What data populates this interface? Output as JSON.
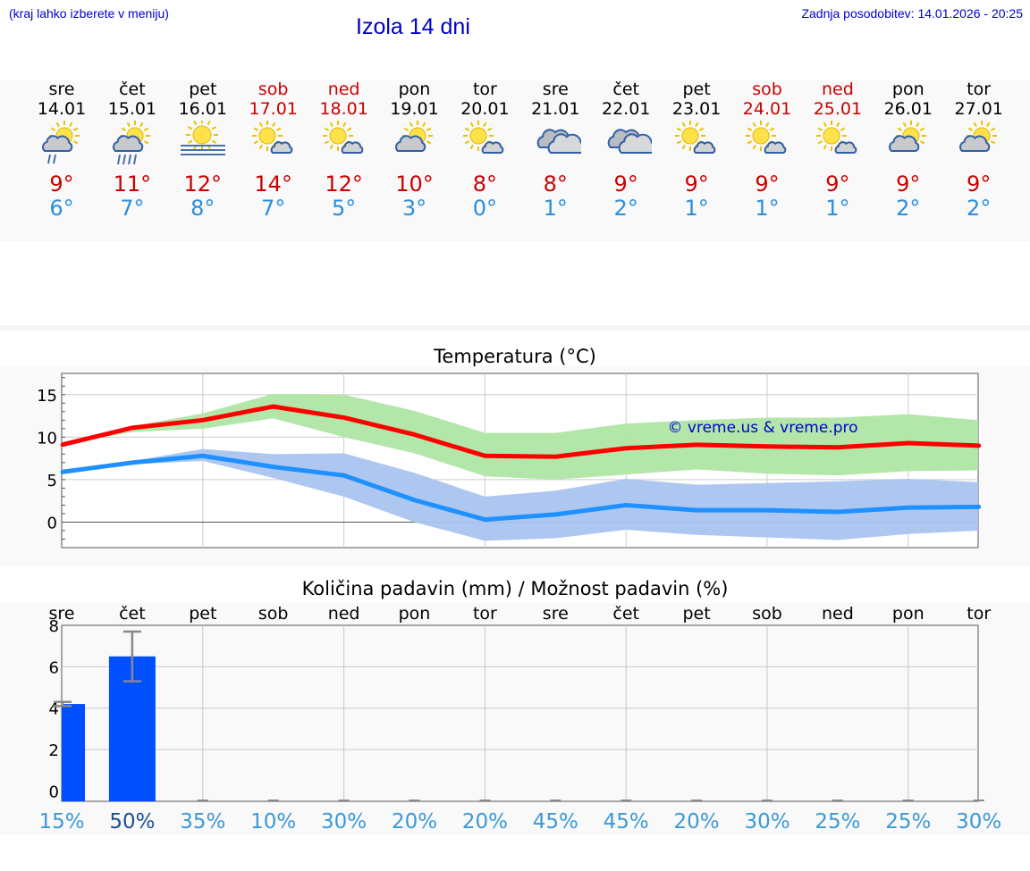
{
  "header": {
    "menu_hint": "(kraj lahko izberete v meniju)",
    "title": "Izola 14 dni",
    "last_update": "Zadnja posodobitev: 14.01.2026 - 20:25"
  },
  "colors": {
    "link_blue": "#0000cc",
    "weekend_red": "#cc0000",
    "max_line": "#ff0000",
    "min_line": "#1e90ff",
    "max_band": "#aee6a4",
    "min_band": "#aac4f0",
    "bar": "#0050ff"
  },
  "days": [
    {
      "name": "sre",
      "date": "14.01",
      "weekend": false,
      "icon": "sun-cloud-rain-icon",
      "tmax": "9°",
      "tmin": "6°"
    },
    {
      "name": "čet",
      "date": "15.01",
      "weekend": false,
      "icon": "sun-cloud-heavy-rain-icon",
      "tmax": "11°",
      "tmin": "7°"
    },
    {
      "name": "pet",
      "date": "16.01",
      "weekend": false,
      "icon": "sun-fog-icon",
      "tmax": "12°",
      "tmin": "8°"
    },
    {
      "name": "sob",
      "date": "17.01",
      "weekend": true,
      "icon": "sun-small-cloud-icon",
      "tmax": "14°",
      "tmin": "7°"
    },
    {
      "name": "ned",
      "date": "18.01",
      "weekend": true,
      "icon": "sun-small-cloud-icon",
      "tmax": "12°",
      "tmin": "5°"
    },
    {
      "name": "pon",
      "date": "19.01",
      "weekend": false,
      "icon": "sun-cloud-icon",
      "tmax": "10°",
      "tmin": "3°"
    },
    {
      "name": "tor",
      "date": "20.01",
      "weekend": false,
      "icon": "sun-small-cloud-icon",
      "tmax": "8°",
      "tmin": "0°"
    },
    {
      "name": "sre",
      "date": "21.01",
      "weekend": false,
      "icon": "cloudy-icon",
      "tmax": "8°",
      "tmin": "1°"
    },
    {
      "name": "čet",
      "date": "22.01",
      "weekend": false,
      "icon": "cloudy-icon",
      "tmax": "9°",
      "tmin": "2°"
    },
    {
      "name": "pet",
      "date": "23.01",
      "weekend": false,
      "icon": "sun-small-cloud-icon",
      "tmax": "9°",
      "tmin": "1°"
    },
    {
      "name": "sob",
      "date": "24.01",
      "weekend": true,
      "icon": "sun-small-cloud-icon",
      "tmax": "9°",
      "tmin": "1°"
    },
    {
      "name": "ned",
      "date": "25.01",
      "weekend": true,
      "icon": "sun-small-cloud-icon",
      "tmax": "9°",
      "tmin": "1°"
    },
    {
      "name": "pon",
      "date": "26.01",
      "weekend": false,
      "icon": "sun-cloud-icon",
      "tmax": "9°",
      "tmin": "2°"
    },
    {
      "name": "tor",
      "date": "27.01",
      "weekend": false,
      "icon": "sun-cloud-icon",
      "tmax": "9°",
      "tmin": "2°"
    }
  ],
  "chart_data": [
    {
      "type": "line",
      "title": "Temperatura (°C)",
      "watermark": "© vreme.us & vreme.pro",
      "x": [
        0,
        1,
        2,
        3,
        4,
        5,
        6,
        7,
        8,
        9,
        10,
        11,
        12,
        13
      ],
      "ylim": [
        -3,
        17.5
      ],
      "yticks": [
        0,
        5,
        10,
        15
      ],
      "grid": true,
      "series": [
        {
          "name": "max",
          "values": [
            9.1,
            11.1,
            12.0,
            13.6,
            12.3,
            10.3,
            7.8,
            7.7,
            8.7,
            9.1,
            8.9,
            8.8,
            9.3,
            9.0
          ],
          "band_low": [
            9.1,
            10.6,
            11.0,
            12.2,
            10.0,
            8.1,
            5.4,
            5.0,
            5.6,
            6.2,
            5.7,
            5.5,
            6.0,
            6.1
          ],
          "band_high": [
            9.1,
            11.3,
            12.8,
            15.1,
            15.0,
            13.1,
            10.5,
            10.5,
            11.6,
            12.0,
            12.3,
            12.3,
            12.7,
            12.0
          ]
        },
        {
          "name": "min",
          "values": [
            5.9,
            7.0,
            7.8,
            6.5,
            5.5,
            2.6,
            0.3,
            0.9,
            2.0,
            1.4,
            1.4,
            1.2,
            1.7,
            1.8
          ],
          "band_low": [
            5.9,
            6.8,
            7.2,
            5.2,
            3.0,
            0.0,
            -2.2,
            -1.9,
            -0.9,
            -1.5,
            -1.8,
            -2.1,
            -1.4,
            -1.0
          ],
          "band_high": [
            5.9,
            7.2,
            8.6,
            8.0,
            8.1,
            5.8,
            3.0,
            3.7,
            5.1,
            4.4,
            4.6,
            4.8,
            5.1,
            4.7
          ]
        }
      ]
    },
    {
      "type": "bar",
      "title": "Količina padavin (mm) / Možnost padavin (%)",
      "categories": [
        "sre",
        "čet",
        "pet",
        "sob",
        "ned",
        "pon",
        "tor",
        "sre",
        "čet",
        "pet",
        "sob",
        "ned",
        "pon",
        "tor"
      ],
      "values": [
        4.2,
        6.5,
        0,
        0,
        0,
        0,
        0,
        0,
        0,
        0,
        0,
        0,
        0,
        0
      ],
      "error_low": [
        4.1,
        5.3,
        0,
        0,
        0,
        0,
        0,
        0,
        0,
        0,
        0,
        0,
        0,
        0
      ],
      "error_high": [
        4.3,
        7.7,
        0,
        0,
        0,
        0,
        0,
        0,
        0,
        0,
        0,
        0,
        0,
        0
      ],
      "ylim": [
        -0.5,
        8
      ],
      "yticks": [
        0,
        2,
        4,
        6,
        8
      ],
      "probability": [
        "15%",
        "50%",
        "35%",
        "10%",
        "30%",
        "20%",
        "20%",
        "45%",
        "45%",
        "20%",
        "30%",
        "25%",
        "25%",
        "30%"
      ],
      "probability_highlight": [
        false,
        true,
        false,
        false,
        false,
        false,
        false,
        false,
        false,
        false,
        false,
        false,
        false,
        false
      ]
    }
  ]
}
